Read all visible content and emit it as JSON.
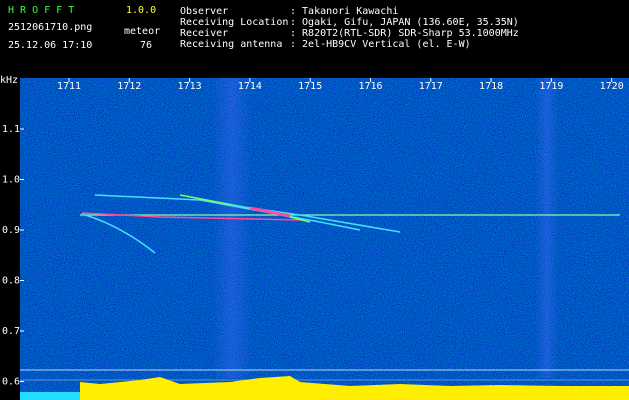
{
  "header": {
    "program": "H R O F F T",
    "version": "1.0.0",
    "filename": "2512061710.png",
    "mode": "meteor",
    "datetime": "25.12.06 17:10",
    "count": "76"
  },
  "info": [
    {
      "label": "Observer",
      "value": ": Takanori Kawachi"
    },
    {
      "label": "Receiving Location",
      "value": ": Ogaki, Gifu, JAPAN (136.60E, 35.35N)"
    },
    {
      "label": "Receiver",
      "value": ": R820T2(RTL-SDR) SDR-Sharp 53.1000MHz"
    },
    {
      "label": "Receiving antenna",
      "value": ": 2el-HB9CV Vertical (el. E-W)"
    }
  ],
  "axis": {
    "unit": "kHz",
    "x_labels": [
      "1711",
      "1712",
      "1713",
      "1714",
      "1715",
      "1716",
      "1717",
      "1718",
      "1719",
      "1720"
    ],
    "y_labels": [
      "1.1",
      "1.0",
      "0.9",
      "0.8",
      "0.7",
      "0.6"
    ]
  }
}
